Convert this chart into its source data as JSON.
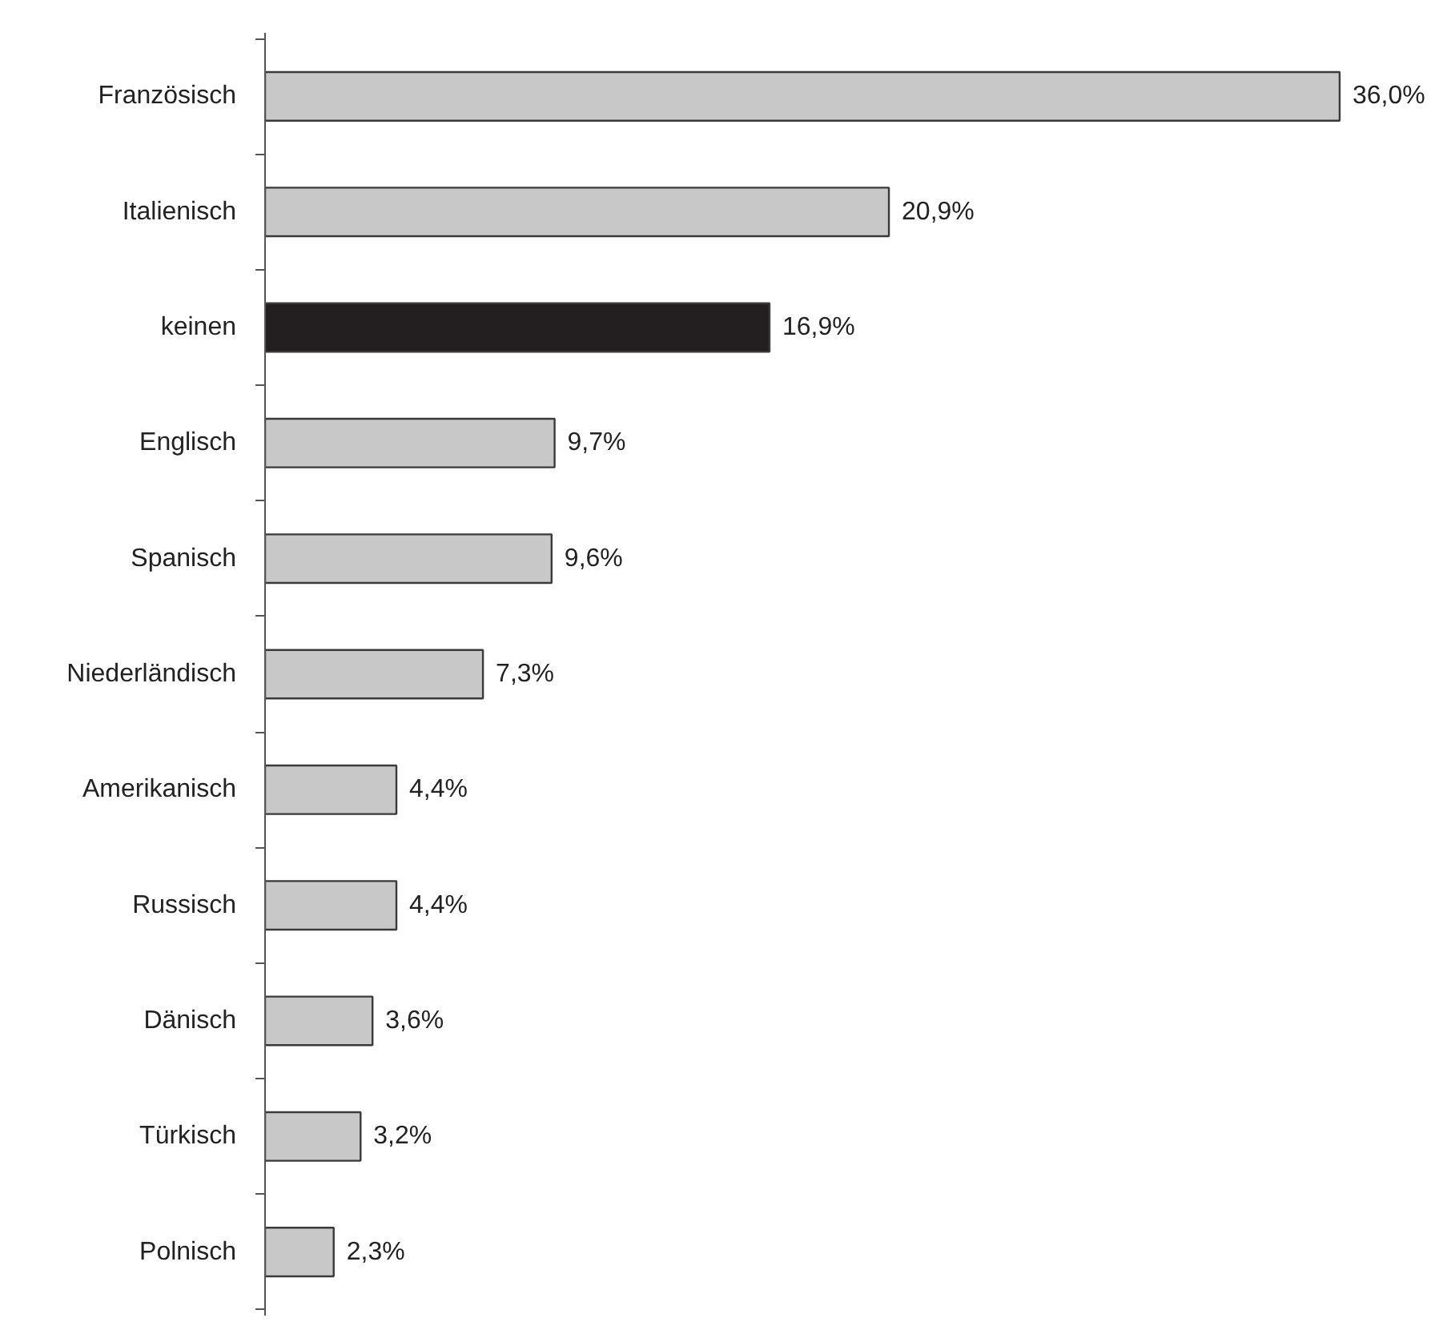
{
  "chart_data": {
    "type": "bar",
    "orientation": "horizontal",
    "categories": [
      "Französisch",
      "Italienisch",
      "keinen",
      "Englisch",
      "Spanisch",
      "Niederländisch",
      "Amerikanisch",
      "Russisch",
      "Dänisch",
      "Türkisch",
      "Polnisch"
    ],
    "values": [
      36.0,
      20.9,
      16.9,
      9.7,
      9.6,
      7.3,
      4.4,
      4.4,
      3.6,
      3.2,
      2.3
    ],
    "colors": [
      "#c8c8c8",
      "#c8c8c8",
      "#231f20",
      "#c8c8c8",
      "#c8c8c8",
      "#c8c8c8",
      "#c8c8c8",
      "#c8c8c8",
      "#c8c8c8",
      "#c8c8c8",
      "#c8c8c8"
    ],
    "value_labels": [
      "36,0%",
      "20,9%",
      "16,9%",
      "9,7%",
      "9,6%",
      "7,3%",
      "4,4%",
      "4,4%",
      "3,6%",
      "3,2%",
      "2,3%"
    ],
    "grid": false
  }
}
